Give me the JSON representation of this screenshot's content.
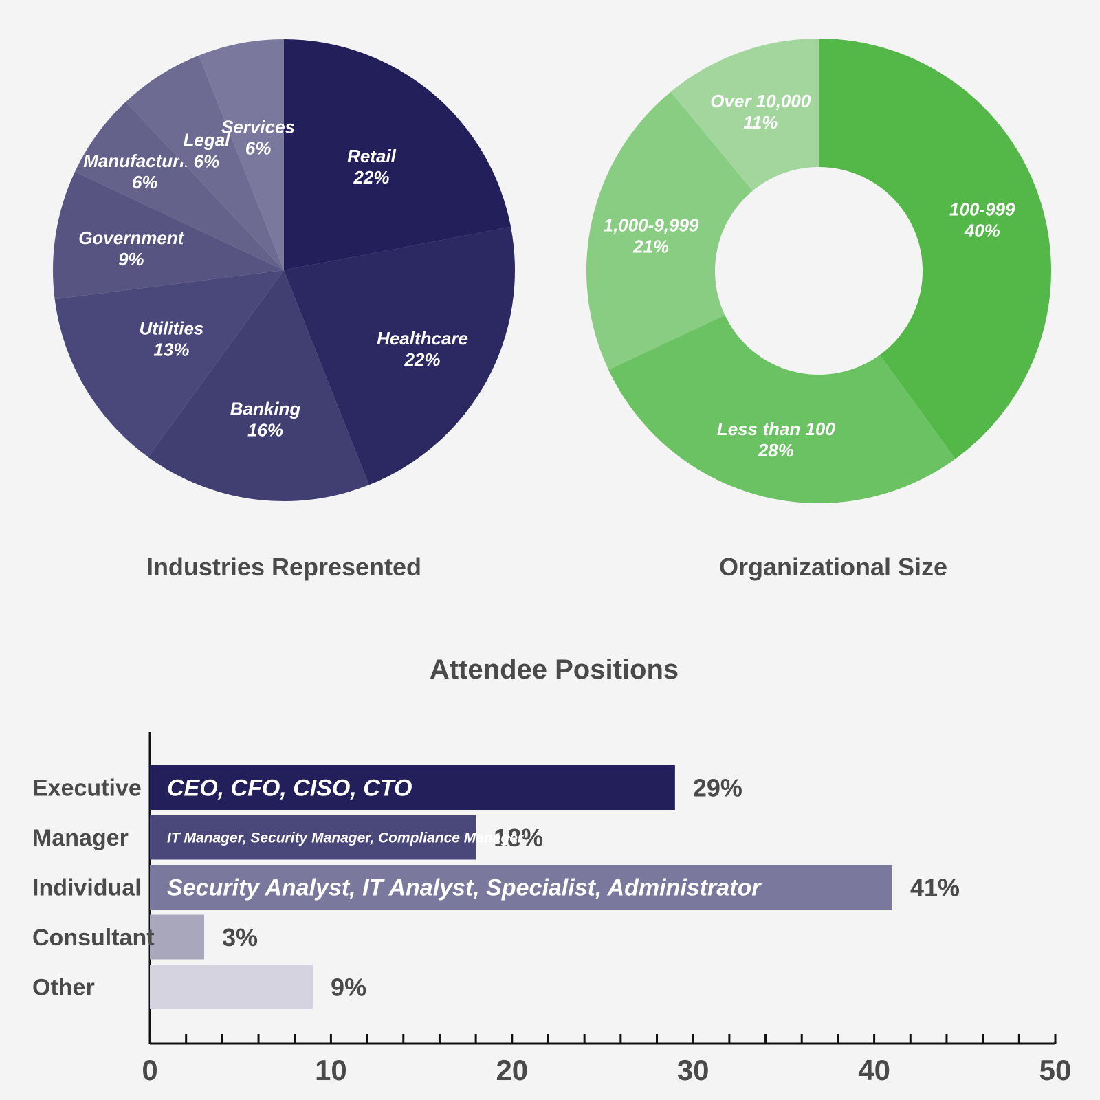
{
  "chart_data": [
    {
      "type": "pie",
      "title": "Industries Represented",
      "slices": [
        {
          "label": "Retail",
          "value": 22,
          "value_label": "22%",
          "color": "#221f5b"
        },
        {
          "label": "Healthcare",
          "value": 22,
          "value_label": "22%",
          "color": "#2b2862"
        },
        {
          "label": "Banking",
          "value": 16,
          "value_label": "16%",
          "color": "#413e72"
        },
        {
          "label": "Utilities",
          "value": 13,
          "value_label": "13%",
          "color": "#4a477a"
        },
        {
          "label": "Government",
          "value": 9,
          "value_label": "9%",
          "color": "#575482"
        },
        {
          "label": "Manufacturing",
          "value": 6,
          "value_label": "6%",
          "color": "#64618a"
        },
        {
          "label": "Legal",
          "value": 6,
          "value_label": "6%",
          "color": "#6e6b92"
        },
        {
          "label": "Services",
          "value": 6,
          "value_label": "6%",
          "color": "#7a789d"
        }
      ]
    },
    {
      "type": "pie",
      "subtype": "donut",
      "title": "Organizational Size",
      "slices": [
        {
          "label": "100-999",
          "value": 40,
          "value_label": "40%",
          "color": "#53b848"
        },
        {
          "label": "Less than 100",
          "value": 28,
          "value_label": "28%",
          "color": "#6ac262"
        },
        {
          "label": "1,000-9,999",
          "value": 21,
          "value_label": "21%",
          "color": "#89cd82"
        },
        {
          "label": "Over 10,000",
          "value": 11,
          "value_label": "11%",
          "color": "#a3d69c"
        }
      ]
    },
    {
      "type": "bar",
      "orientation": "horizontal",
      "title": "Attendee Positions",
      "categories": [
        "Executive",
        "Manager",
        "Individual",
        "Consultant",
        "Other"
      ],
      "values": [
        29,
        18,
        41,
        3,
        9
      ],
      "value_labels": [
        "29%",
        "18%",
        "41%",
        "3%",
        "9%"
      ],
      "bar_texts": [
        "CEO, CFO, CISO, CTO",
        "IT Manager, Security Manager, Compliance Manager",
        "Security Analyst, IT Analyst, Specialist, Administrator",
        "",
        ""
      ],
      "colors": [
        "#221f5b",
        "#4a477a",
        "#7a789d",
        "#a8a7bb",
        "#d5d3df"
      ],
      "xlim": [
        0,
        50
      ],
      "xticks": [
        0,
        10,
        20,
        30,
        40,
        50
      ]
    }
  ]
}
